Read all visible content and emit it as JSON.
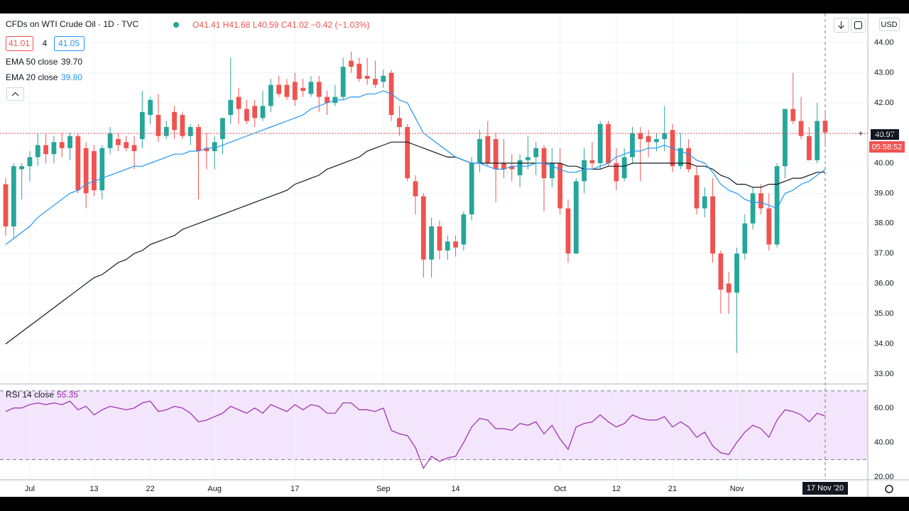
{
  "header": {
    "symbol": "CFDs on WTI Crude Oil · 1D · TVC",
    "ohlc": "O41.41 H41.68 L40.59 C41.02 −0.42 (−1.03%)",
    "bid": "41.01",
    "spread": "4",
    "ask": "41.05",
    "currency": "USD",
    "last_price": "40.97",
    "countdown": "05:58:52"
  },
  "chart_data": {
    "type": "candlestick",
    "up_color": "#26a69a",
    "down_color": "#ef5350",
    "grid": true,
    "categories": [
      null,
      null,
      null,
      "Jul",
      null,
      null,
      null,
      null,
      null,
      null,
      null,
      "13",
      null,
      null,
      null,
      null,
      null,
      null,
      "22",
      null,
      null,
      null,
      null,
      null,
      null,
      null,
      "Aug",
      null,
      null,
      null,
      null,
      null,
      null,
      null,
      null,
      null,
      "17",
      null,
      null,
      null,
      null,
      null,
      null,
      null,
      null,
      null,
      null,
      "Sep",
      null,
      null,
      null,
      null,
      null,
      null,
      null,
      null,
      "14",
      null,
      null,
      null,
      null,
      null,
      null,
      null,
      null,
      null,
      null,
      null,
      null,
      "Oct",
      null,
      null,
      null,
      null,
      null,
      null,
      "12",
      null,
      null,
      null,
      null,
      null,
      null,
      "21",
      null,
      null,
      null,
      null,
      null,
      null,
      null,
      "Nov",
      null,
      null,
      null,
      null,
      null,
      null,
      null,
      null,
      null,
      null,
      "17 Nov '20"
    ],
    "open": [
      39.3,
      37.9,
      39.8,
      39.9,
      40.2,
      40.6,
      40.3,
      40.7,
      40.5,
      40.9,
      40.5,
      40.4,
      39.1,
      40.5,
      40.8,
      40.7,
      40.6,
      40.8,
      41.6,
      41.6,
      40.9,
      41.7,
      41.6,
      40.9,
      41.2,
      40.5,
      40.4,
      40.8,
      41.6,
      42.2,
      41.8,
      41.9,
      41.5,
      41.9,
      42.6,
      42.6,
      42.7,
      42.5,
      42.3,
      42.7,
      42.2,
      42.0,
      42.2,
      43.4,
      43.3,
      42.9,
      42.8,
      42.7,
      43.0,
      41.5,
      41.2,
      39.4,
      38.9,
      36.8,
      37.9,
      37.1,
      37.4,
      37.3,
      38.3,
      40.0,
      40.9,
      40.8,
      40.0,
      39.9,
      39.6,
      40.1,
      40.2,
      40.5,
      39.5,
      40.0,
      38.5,
      37.0,
      39.4,
      40.1,
      40.0,
      41.3,
      40.0,
      39.5,
      40.2,
      41.0,
      40.9,
      40.7,
      40.8,
      41.1,
      39.9,
      40.5,
      39.6,
      38.5,
      38.9,
      37.0,
      36.0,
      35.7,
      37.0,
      38.0,
      39.0,
      38.5,
      37.3,
      39.9,
      41.8,
      41.4,
      40.9,
      40.1,
      41.41
    ],
    "high": [
      39.5,
      40.0,
      40.0,
      40.4,
      41.0,
      41.0,
      40.9,
      41.0,
      41.0,
      41.0,
      40.7,
      40.6,
      40.6,
      41.2,
      41.0,
      40.9,
      40.9,
      42.4,
      42.2,
      42.3,
      41.4,
      41.9,
      41.7,
      41.3,
      41.3,
      41.0,
      40.9,
      41.5,
      43.5,
      42.5,
      42.1,
      42.1,
      42.4,
      42.8,
      42.9,
      42.8,
      43.0,
      42.8,
      42.9,
      42.9,
      42.4,
      42.6,
      43.5,
      43.7,
      43.5,
      43.5,
      43.4,
      43.1,
      43.1,
      41.9,
      41.3,
      39.6,
      39.0,
      38.2,
      38.1,
      37.6,
      37.6,
      38.4,
      40.2,
      41.1,
      41.4,
      41.0,
      40.8,
      40.3,
      40.3,
      40.9,
      40.7,
      40.6,
      40.5,
      40.5,
      38.8,
      39.5,
      40.5,
      40.7,
      41.4,
      41.4,
      40.5,
      40.5,
      41.2,
      41.2,
      41.1,
      41.0,
      41.9,
      41.3,
      41.0,
      40.8,
      39.9,
      39.2,
      39.5,
      37.1,
      36.4,
      37.2,
      38.3,
      39.2,
      39.3,
      39.0,
      40.0,
      41.8,
      43.0,
      42.2,
      41.2,
      42.0,
      41.68
    ],
    "low": [
      37.6,
      37.5,
      38.8,
      39.4,
      39.9,
      40.0,
      40.0,
      40.2,
      40.1,
      39.0,
      38.5,
      38.9,
      38.8,
      40.3,
      40.4,
      40.4,
      39.8,
      40.5,
      41.3,
      40.7,
      40.8,
      40.8,
      40.8,
      40.6,
      38.8,
      39.8,
      39.8,
      40.3,
      41.3,
      41.3,
      41.3,
      41.2,
      41.4,
      41.7,
      42.2,
      42.1,
      41.9,
      42.2,
      42.2,
      41.7,
      41.6,
      41.9,
      42.1,
      43.0,
      42.7,
      42.6,
      42.5,
      42.5,
      41.4,
      40.9,
      39.4,
      38.3,
      36.2,
      36.2,
      36.8,
      36.8,
      36.9,
      37.1,
      38.1,
      39.7,
      39.9,
      38.7,
      39.5,
      39.4,
      39.2,
      39.8,
      39.6,
      38.4,
      39.2,
      38.3,
      36.7,
      37.0,
      39.0,
      39.8,
      39.8,
      39.9,
      39.1,
      39.4,
      40.0,
      39.4,
      40.2,
      40.4,
      40.4,
      39.7,
      39.8,
      39.7,
      38.3,
      38.2,
      36.7,
      35.0,
      35.0,
      33.7,
      36.8,
      37.8,
      38.3,
      37.1,
      37.2,
      39.5,
      41.3,
      40.8,
      40.1,
      40.0,
      40.59
    ],
    "close": [
      37.9,
      39.9,
      39.9,
      40.2,
      40.6,
      40.3,
      40.7,
      40.5,
      40.9,
      39.1,
      39.0,
      39.1,
      40.5,
      41.0,
      40.6,
      40.5,
      40.4,
      41.7,
      42.1,
      40.9,
      41.2,
      41.1,
      40.9,
      41.2,
      40.4,
      40.4,
      40.7,
      41.5,
      42.1,
      41.8,
      41.4,
      41.5,
      41.9,
      42.6,
      42.3,
      42.2,
      42.1,
      42.4,
      42.7,
      42.2,
      42.0,
      42.2,
      43.2,
      43.2,
      42.8,
      42.8,
      42.6,
      42.9,
      41.6,
      41.2,
      39.5,
      38.9,
      36.8,
      37.9,
      37.1,
      37.4,
      37.2,
      38.3,
      40.0,
      40.8,
      40.0,
      39.8,
      39.8,
      39.8,
      40.1,
      40.2,
      40.5,
      39.5,
      40.0,
      38.5,
      37.0,
      39.4,
      40.1,
      40.0,
      41.3,
      40.0,
      39.4,
      40.2,
      41.0,
      40.8,
      40.7,
      40.8,
      41.0,
      39.9,
      40.5,
      39.8,
      38.5,
      38.9,
      37.0,
      35.8,
      35.7,
      37.0,
      38.0,
      39.0,
      38.5,
      37.3,
      39.9,
      41.8,
      41.4,
      40.9,
      40.1,
      41.4,
      41.02
    ],
    "series": [
      {
        "name": "EMA 50 close",
        "last_label": "39.70",
        "color": "#131722",
        "values": [
          34.0,
          34.2,
          34.4,
          34.6,
          34.8,
          35.0,
          35.2,
          35.4,
          35.6,
          35.8,
          36.0,
          36.2,
          36.3,
          36.5,
          36.7,
          36.8,
          37.0,
          37.1,
          37.3,
          37.4,
          37.5,
          37.6,
          37.8,
          37.9,
          38.0,
          38.1,
          38.2,
          38.3,
          38.4,
          38.5,
          38.6,
          38.7,
          38.8,
          38.9,
          39.0,
          39.1,
          39.3,
          39.4,
          39.5,
          39.6,
          39.8,
          39.9,
          40.0,
          40.1,
          40.2,
          40.4,
          40.5,
          40.6,
          40.7,
          40.7,
          40.7,
          40.6,
          40.5,
          40.4,
          40.3,
          40.2,
          40.2,
          40.1,
          40.0,
          40.0,
          40.0,
          40.0,
          40.0,
          40.0,
          40.0,
          40.0,
          40.0,
          40.0,
          40.0,
          40.0,
          39.9,
          39.9,
          39.8,
          39.8,
          39.8,
          39.9,
          39.9,
          39.9,
          40.0,
          40.0,
          40.0,
          40.0,
          40.0,
          40.0,
          40.0,
          40.0,
          39.9,
          39.9,
          39.8,
          39.6,
          39.5,
          39.3,
          39.3,
          39.2,
          39.2,
          39.3,
          39.3,
          39.4,
          39.5,
          39.5,
          39.6,
          39.7,
          39.7
        ]
      },
      {
        "name": "EMA 20 close",
        "last_label": "39.80",
        "color": "#2196f3",
        "values": [
          37.3,
          37.5,
          37.7,
          37.9,
          38.2,
          38.4,
          38.6,
          38.8,
          39.0,
          39.1,
          39.3,
          39.4,
          39.5,
          39.6,
          39.7,
          39.8,
          39.9,
          39.9,
          40.0,
          40.1,
          40.2,
          40.3,
          40.3,
          40.4,
          40.4,
          40.5,
          40.5,
          40.6,
          40.7,
          40.8,
          40.9,
          41.0,
          41.1,
          41.2,
          41.3,
          41.4,
          41.5,
          41.6,
          41.8,
          41.9,
          42.0,
          42.1,
          42.1,
          42.2,
          42.2,
          42.3,
          42.3,
          42.4,
          42.3,
          42.1,
          42.0,
          41.5,
          41.0,
          40.8,
          40.6,
          40.4,
          40.2,
          40.1,
          40.0,
          40.0,
          39.9,
          39.8,
          39.8,
          39.9,
          39.9,
          39.9,
          40.0,
          40.0,
          39.9,
          39.8,
          39.7,
          39.7,
          39.8,
          39.8,
          39.9,
          40.0,
          40.2,
          40.3,
          40.4,
          40.4,
          40.5,
          40.5,
          40.6,
          40.5,
          40.4,
          40.3,
          40.1,
          40.0,
          39.7,
          39.3,
          39.1,
          39.0,
          38.8,
          38.7,
          38.7,
          38.6,
          38.5,
          39.0,
          39.1,
          39.3,
          39.4,
          39.6,
          39.8
        ]
      }
    ],
    "ylim": [
      32.67,
      44.97
    ],
    "yticks": [
      {
        "value": 33,
        "label": "33.00"
      },
      {
        "value": 34,
        "label": "34.00"
      },
      {
        "value": 35,
        "label": "35.00"
      },
      {
        "value": 36,
        "label": "36.00"
      },
      {
        "value": 37,
        "label": "37.00"
      },
      {
        "value": 38,
        "label": "38.00"
      },
      {
        "value": 39,
        "label": "39.00"
      },
      {
        "value": 40,
        "label": "40.00"
      },
      {
        "value": 41,
        "label": "41.00"
      },
      {
        "value": 42,
        "label": "42.00"
      },
      {
        "value": 43,
        "label": "43.00"
      },
      {
        "value": 44,
        "label": "44.00"
      }
    ],
    "rsi": {
      "name": "RSI 14 close",
      "color": "#9c27b0",
      "band": [
        30,
        70
      ],
      "band_color": "#f3e5fb",
      "values": [
        58,
        60,
        60,
        62,
        63,
        62,
        63,
        62,
        64,
        59,
        61,
        56,
        59,
        61,
        60,
        59,
        60,
        63,
        64,
        58,
        59,
        61,
        60,
        57,
        52,
        53,
        55,
        57,
        61,
        59,
        57,
        60,
        57,
        62,
        60,
        58,
        62,
        59,
        62,
        61,
        57,
        57,
        63,
        63,
        59,
        59,
        58,
        60,
        47,
        45,
        44,
        37,
        25,
        32,
        29,
        31,
        32,
        40,
        49,
        54,
        53,
        48,
        48,
        47,
        51,
        50,
        52,
        45,
        50,
        42,
        36,
        49,
        51,
        52,
        56,
        52,
        49,
        51,
        56,
        54,
        53,
        53,
        55,
        49,
        52,
        49,
        43,
        46,
        38,
        34,
        33,
        40,
        46,
        50,
        48,
        43,
        53,
        59,
        58,
        56,
        52,
        57,
        55.35
      ],
      "ylim": [
        18.3,
        74.0
      ],
      "yticks": [
        {
          "value": 20,
          "label": "20.00"
        },
        {
          "value": 40,
          "label": "40.00"
        },
        {
          "value": 60,
          "label": "60.00"
        }
      ]
    }
  }
}
